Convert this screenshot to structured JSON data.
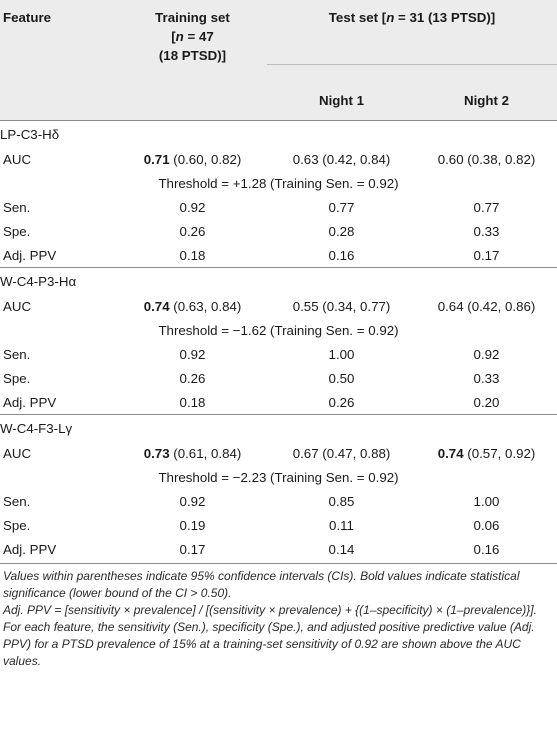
{
  "header": {
    "feature": "Feature",
    "training_line1": "Training set",
    "training_line2a": "[",
    "training_n": "n",
    "training_line2b": " = 47",
    "training_line3": "(18 PTSD)]",
    "test_a": "Test set [",
    "test_n": "n",
    "test_b": " = 31 (13 PTSD)]",
    "night1": "Night 1",
    "night2": "Night 2"
  },
  "sections": [
    {
      "feature": "LP-C3-Hδ",
      "auc": {
        "label": "AUC",
        "train_bold": "0.71",
        "train_ci": " (0.60, 0.82)",
        "n1_bold": "",
        "n1_ci": "0.63 (0.42, 0.84)",
        "n2_bold": "",
        "n2_ci": "0.60 (0.38, 0.82)"
      },
      "threshold": "Threshold = +1.28 (Training Sen. = 0.92)",
      "rows": [
        {
          "label": "Sen.",
          "train": "0.92",
          "n1": "0.77",
          "n2": "0.77"
        },
        {
          "label": "Spe.",
          "train": "0.26",
          "n1": "0.28",
          "n2": "0.33"
        },
        {
          "label": "Adj. PPV",
          "train": "0.18",
          "n1": "0.16",
          "n2": "0.17"
        }
      ]
    },
    {
      "feature": "W-C4-P3-Hα",
      "auc": {
        "label": "AUC",
        "train_bold": "0.74",
        "train_ci": " (0.63, 0.84)",
        "n1_bold": "",
        "n1_ci": "0.55 (0.34, 0.77)",
        "n2_bold": "",
        "n2_ci": "0.64 (0.42, 0.86)"
      },
      "threshold": "Threshold = −1.62 (Training Sen. = 0.92)",
      "rows": [
        {
          "label": "Sen.",
          "train": "0.92",
          "n1": "1.00",
          "n2": "0.92"
        },
        {
          "label": "Spe.",
          "train": "0.26",
          "n1": "0.50",
          "n2": "0.33"
        },
        {
          "label": "Adj. PPV",
          "train": "0.18",
          "n1": "0.26",
          "n2": "0.20"
        }
      ]
    },
    {
      "feature": "W-C4-F3-Lγ",
      "auc": {
        "label": "AUC",
        "train_bold": "0.73",
        "train_ci": " (0.61, 0.84)",
        "n1_bold": "",
        "n1_ci": "0.67 (0.47, 0.88)",
        "n2_bold": "0.74",
        "n2_ci": " (0.57, 0.92)"
      },
      "threshold": "Threshold = −2.23 (Training Sen. = 0.92)",
      "rows": [
        {
          "label": "Sen.",
          "train": "0.92",
          "n1": "0.85",
          "n2": "1.00"
        },
        {
          "label": "Spe.",
          "train": "0.19",
          "n1": "0.11",
          "n2": "0.06"
        },
        {
          "label": "Adj. PPV",
          "train": "0.17",
          "n1": "0.14",
          "n2": "0.16"
        }
      ]
    }
  ],
  "notes": [
    "Values within parentheses indicate 95% confidence intervals (CIs). Bold values indicate statistical significance (lower bound of the CI > 0.50).",
    "Adj. PPV = [sensitivity × prevalence] / [(sensitivity × prevalence) + {(1–specificity) × (1–prevalence)}].",
    "For each feature, the sensitivity (Sen.), specificity (Spe.), and adjusted positive predictive value (Adj. PPV) for a PTSD prevalence of 15% at a training-set sensitivity of 0.92 are shown above the AUC values."
  ]
}
